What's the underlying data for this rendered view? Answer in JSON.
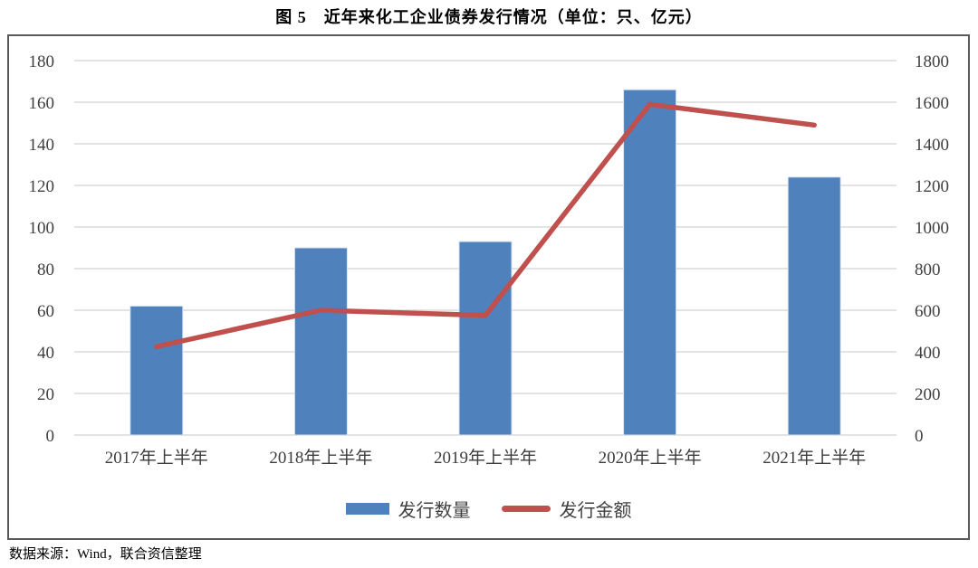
{
  "chart_data": {
    "type": "combo-bar-line",
    "title": "图 5　近年来化工企业债券发行情况（单位：只、亿元）",
    "categories": [
      "2017年上半年",
      "2018年上半年",
      "2019年上半年",
      "2020年上半年",
      "2021年上半年"
    ],
    "series": [
      {
        "name": "发行数量",
        "type": "bar",
        "axis": "left",
        "color": "#4F81BD",
        "values": [
          62,
          90,
          93,
          166,
          124
        ]
      },
      {
        "name": "发行金额",
        "type": "line",
        "axis": "right",
        "color": "#C0504D",
        "values": [
          425,
          600,
          575,
          1590,
          1490
        ]
      }
    ],
    "left_axis": {
      "min": 0,
      "max": 180,
      "step": 20,
      "ticks": [
        0,
        20,
        40,
        60,
        80,
        100,
        120,
        140,
        160,
        180
      ]
    },
    "right_axis": {
      "min": 0,
      "max": 1800,
      "step": 200,
      "ticks": [
        0,
        200,
        400,
        600,
        800,
        1000,
        1200,
        1400,
        1600,
        1800
      ]
    },
    "grid": true,
    "gridline_color": "#dadada",
    "legend_position": "bottom"
  },
  "footer": {
    "source": "数据来源：Wind，联合资信整理"
  }
}
